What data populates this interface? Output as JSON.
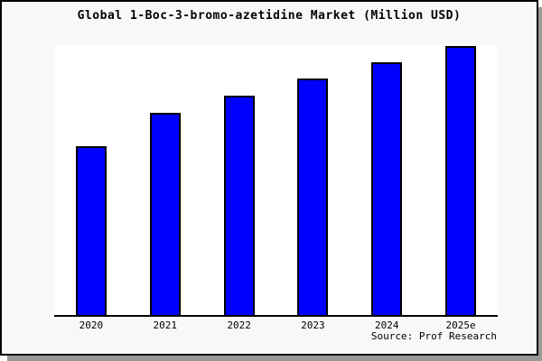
{
  "title": "Global 1-Boc-3-bromo-azetidine Market (Million USD)",
  "source_credit": "Source: Prof Research",
  "colors": {
    "bar_fill": "#0000ff",
    "bar_border": "#000000",
    "figure_background": "#f8f8f8",
    "plot_background": "#ffffff",
    "axis_line": "#000000",
    "shadow": "#999999",
    "text": "#000000"
  },
  "chart_data": {
    "type": "bar",
    "title": "Global 1-Boc-3-bromo-azetidine Market (Million USD)",
    "categories": [
      "2020",
      "2021",
      "2022",
      "2023",
      "2024",
      "2025e"
    ],
    "values": [
      63,
      75.3,
      81.7,
      88,
      94,
      100
    ],
    "values_note": "relative scale estimated from bar heights; chart shows no y-axis tick labels",
    "xlabel": "",
    "ylabel": "",
    "ylim": [
      0,
      100.3
    ],
    "grid": "off",
    "legend": "none",
    "y_axis_ticks": "none",
    "series_color": "#0000ff"
  }
}
